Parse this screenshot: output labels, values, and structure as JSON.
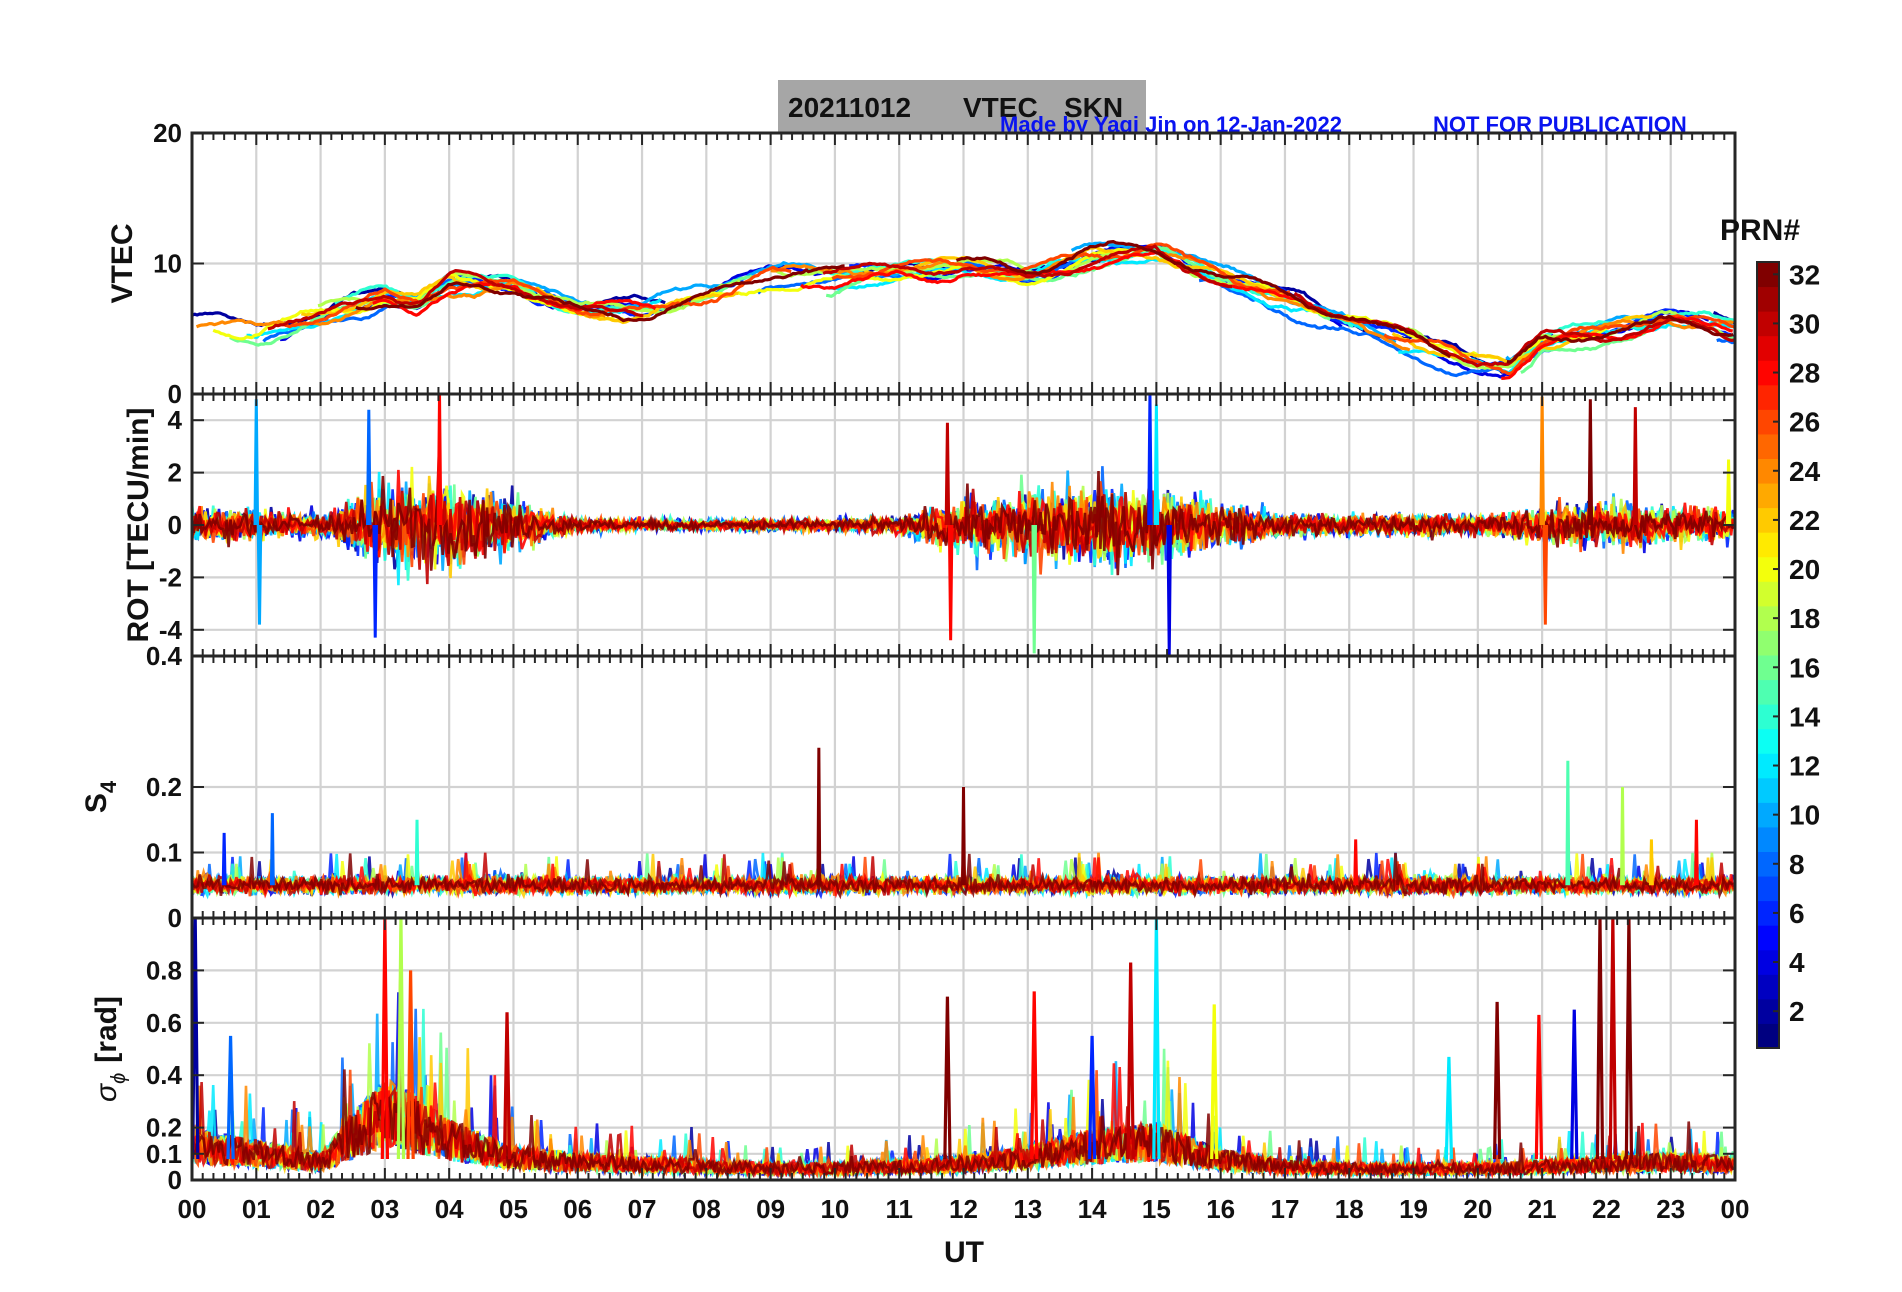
{
  "header": {
    "title_date": "20211012",
    "title_kind": "VTEC",
    "title_station": "SKN",
    "credit": "Made by Yaqi Jin on 12-Jan-2022",
    "notice": "NOT FOR PUBLICATION",
    "credit_color": "#0a14f0"
  },
  "chart_data": [
    {
      "id": "vtec",
      "type": "line",
      "ylabel": "VTEC",
      "ylim": [
        0,
        20
      ],
      "yticks": [
        0,
        10,
        20
      ],
      "ytick_labels": [
        "0",
        "10",
        "20"
      ],
      "grid": true,
      "trend": {
        "x_hours": [
          0,
          0.5,
          1,
          2,
          3,
          3.5,
          4,
          5,
          6,
          7,
          8,
          9,
          10,
          10.5,
          11,
          12,
          13,
          14,
          15,
          16,
          17,
          18,
          19,
          20,
          20.5,
          21,
          22,
          23,
          24
        ],
        "values": [
          5.5,
          5.2,
          4.8,
          6,
          7.5,
          7,
          8.5,
          8.5,
          6.5,
          6.5,
          7.5,
          9.2,
          9,
          9.3,
          9.5,
          10,
          9,
          10.5,
          11,
          9,
          7.5,
          5.5,
          4,
          2.5,
          2,
          4,
          5,
          6,
          5
        ],
        "spread": 1.6
      },
      "series_prn": [
        2,
        4,
        6,
        8,
        10,
        12,
        14,
        16,
        18,
        20,
        22,
        24,
        26,
        28,
        30,
        32
      ]
    },
    {
      "id": "rot",
      "type": "line",
      "ylabel": "ROT [TECU/min]",
      "ylim": [
        -5,
        5
      ],
      "yticks": [
        -4,
        -2,
        0,
        2,
        4
      ],
      "ytick_labels": [
        "-4",
        "-2",
        "0",
        "2",
        "4"
      ],
      "grid": true,
      "activity": {
        "x_hours": [
          0,
          1,
          2,
          2.5,
          3,
          3.5,
          4,
          5,
          5.5,
          6,
          7,
          8,
          9,
          10,
          11,
          11.5,
          12,
          13,
          14,
          15,
          16,
          17,
          18,
          19,
          20,
          21,
          22,
          23,
          24
        ],
        "amplitude": [
          1.0,
          0.8,
          0.6,
          1.5,
          2.2,
          2.5,
          2.2,
          1.4,
          0.8,
          0.4,
          0.3,
          0.3,
          0.3,
          0.3,
          0.5,
          1.0,
          1.3,
          1.8,
          2.3,
          2.0,
          1.2,
          0.6,
          0.5,
          0.6,
          0.5,
          1.0,
          1.3,
          1.0,
          0.9
        ]
      },
      "spikes": [
        {
          "t": 1.0,
          "v": 4.8,
          "prn": 10
        },
        {
          "t": 1.05,
          "v": -3.8,
          "prn": 10
        },
        {
          "t": 2.75,
          "v": 4.4,
          "prn": 8
        },
        {
          "t": 2.85,
          "v": -4.3,
          "prn": 6
        },
        {
          "t": 3.85,
          "v": 5.0,
          "prn": 28
        },
        {
          "t": 11.75,
          "v": 3.9,
          "prn": 30
        },
        {
          "t": 11.8,
          "v": -4.4,
          "prn": 28
        },
        {
          "t": 13.1,
          "v": -4.9,
          "prn": 16
        },
        {
          "t": 14.9,
          "v": 5.0,
          "prn": 6
        },
        {
          "t": 15.2,
          "v": -5.0,
          "prn": 4
        },
        {
          "t": 15.0,
          "v": 4.6,
          "prn": 12
        },
        {
          "t": 21.0,
          "v": 4.9,
          "prn": 24
        },
        {
          "t": 21.05,
          "v": -3.8,
          "prn": 26
        },
        {
          "t": 21.75,
          "v": 4.8,
          "prn": 32
        },
        {
          "t": 22.45,
          "v": 4.5,
          "prn": 30
        },
        {
          "t": 23.9,
          "v": 2.5,
          "prn": 20
        }
      ]
    },
    {
      "id": "s4",
      "type": "line",
      "ylabel_main": "S",
      "ylabel_sub": "4",
      "ylim": [
        0,
        0.4
      ],
      "yticks": [
        0,
        0.1,
        0.2,
        0.4
      ],
      "ytick_labels": [
        "0",
        "0.1",
        "0.2",
        "0.4"
      ],
      "grid": true,
      "baseline": 0.05,
      "spikes": [
        {
          "t": 9.75,
          "v": 0.26,
          "prn": 32
        },
        {
          "t": 12.0,
          "v": 0.2,
          "prn": 32
        },
        {
          "t": 21.4,
          "v": 0.24,
          "prn": 15
        },
        {
          "t": 22.25,
          "v": 0.2,
          "prn": 18
        },
        {
          "t": 1.25,
          "v": 0.16,
          "prn": 8
        },
        {
          "t": 3.5,
          "v": 0.15,
          "prn": 14
        },
        {
          "t": 18.1,
          "v": 0.12,
          "prn": 28
        },
        {
          "t": 23.4,
          "v": 0.15,
          "prn": 28
        },
        {
          "t": 0.5,
          "v": 0.13,
          "prn": 6
        },
        {
          "t": 22.7,
          "v": 0.12,
          "prn": 22
        }
      ]
    },
    {
      "id": "sigma",
      "type": "line",
      "ylabel": "σ",
      "ylabel_sub": "ϕ",
      "ylabel_unit": "[rad]",
      "ylim": [
        0,
        1
      ],
      "yticks": [
        0,
        0.1,
        0.2,
        0.4,
        0.6,
        0.8
      ],
      "ytick_labels": [
        "0",
        "0.1",
        "0.2",
        "0.4",
        "0.6",
        "0.8"
      ],
      "grid": true,
      "activity": {
        "x_hours": [
          0,
          1,
          2,
          2.5,
          3,
          3.5,
          4,
          5,
          6,
          7,
          8,
          9,
          10,
          11,
          12,
          13,
          14,
          15,
          16,
          17,
          18,
          19,
          20,
          21,
          22,
          23,
          24
        ],
        "level": [
          0.15,
          0.12,
          0.08,
          0.2,
          0.3,
          0.25,
          0.18,
          0.1,
          0.08,
          0.07,
          0.06,
          0.05,
          0.05,
          0.06,
          0.07,
          0.1,
          0.15,
          0.17,
          0.09,
          0.06,
          0.05,
          0.05,
          0.05,
          0.06,
          0.07,
          0.08,
          0.07
        ]
      },
      "spikes": [
        {
          "t": 0.05,
          "v": 1.0,
          "prn": 2
        },
        {
          "t": 0.6,
          "v": 0.55,
          "prn": 8
        },
        {
          "t": 3.0,
          "v": 1.0,
          "prn": 28
        },
        {
          "t": 3.25,
          "v": 1.0,
          "prn": 18
        },
        {
          "t": 3.4,
          "v": 0.8,
          "prn": 26
        },
        {
          "t": 4.9,
          "v": 0.64,
          "prn": 30
        },
        {
          "t": 11.75,
          "v": 0.7,
          "prn": 32
        },
        {
          "t": 13.1,
          "v": 0.72,
          "prn": 28
        },
        {
          "t": 14.0,
          "v": 0.55,
          "prn": 6
        },
        {
          "t": 14.6,
          "v": 0.83,
          "prn": 30
        },
        {
          "t": 15.0,
          "v": 1.0,
          "prn": 12
        },
        {
          "t": 15.9,
          "v": 0.67,
          "prn": 20
        },
        {
          "t": 19.55,
          "v": 0.47,
          "prn": 12
        },
        {
          "t": 20.3,
          "v": 0.68,
          "prn": 32
        },
        {
          "t": 20.95,
          "v": 0.63,
          "prn": 28
        },
        {
          "t": 21.5,
          "v": 0.65,
          "prn": 4
        },
        {
          "t": 21.9,
          "v": 1.0,
          "prn": 32
        },
        {
          "t": 22.1,
          "v": 1.0,
          "prn": 30
        },
        {
          "t": 22.35,
          "v": 1.0,
          "prn": 32
        }
      ]
    }
  ],
  "x_axis": {
    "label": "UT",
    "tick_labels": [
      "00",
      "01",
      "02",
      "03",
      "04",
      "05",
      "06",
      "07",
      "08",
      "09",
      "10",
      "11",
      "12",
      "13",
      "14",
      "15",
      "16",
      "17",
      "18",
      "19",
      "20",
      "21",
      "22",
      "23",
      "00"
    ]
  },
  "colorbar": {
    "title": "PRN#",
    "range": [
      1,
      32
    ],
    "tick_values": [
      2,
      4,
      6,
      8,
      10,
      12,
      14,
      16,
      18,
      20,
      22,
      24,
      26,
      28,
      30,
      32
    ],
    "tick_labels": [
      "2",
      "4",
      "6",
      "8",
      "10",
      "12",
      "14",
      "16",
      "18",
      "20",
      "22",
      "24",
      "26",
      "28",
      "30",
      "32"
    ],
    "colormap": "jet"
  }
}
